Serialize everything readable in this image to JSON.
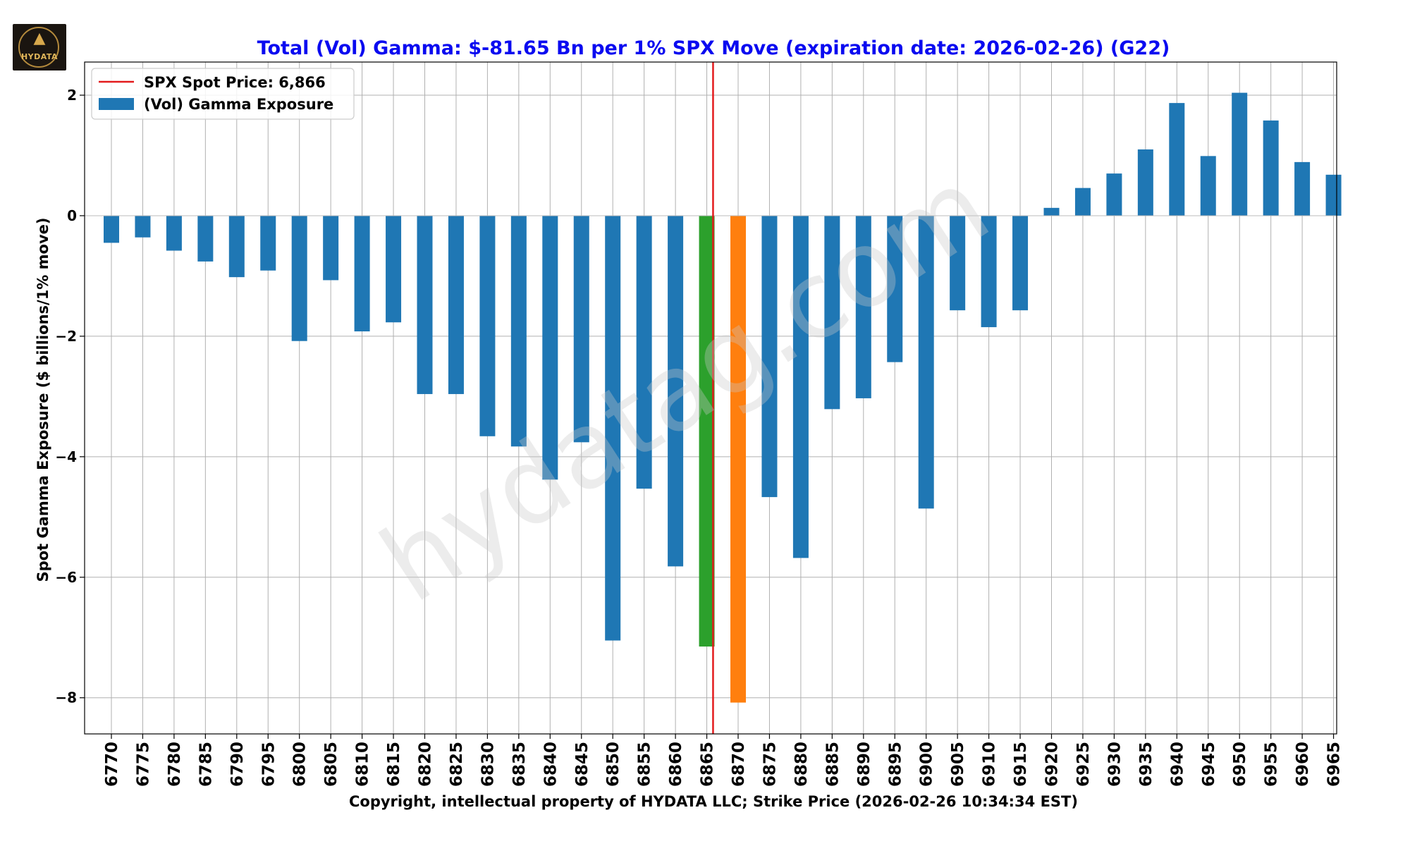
{
  "logo": {
    "text": "HYDATA",
    "icon": "wolf-icon",
    "accent": "#d8a94c",
    "background": "#1a1510"
  },
  "watermark": "hydatag.com",
  "chart_data": {
    "type": "bar",
    "title": "Total (Vol) Gamma: $-81.65 Bn per 1% SPX Move (expiration date: 2026-02-26) (G22)",
    "xlabel": "Copyright, intellectual property of HYDATA LLC; Strike Price (2026-02-26 10:34:34 EST)",
    "ylabel": "Spot Gamma Exposure ($ billions/1% move)",
    "ylim": [
      -8.6,
      2.55
    ],
    "yticks": [
      2,
      0,
      -2,
      -4,
      -6,
      -8
    ],
    "ytick_labels": [
      "2",
      "0",
      "−2",
      "−4",
      "−6",
      "−8"
    ],
    "grid": true,
    "legend_position": "top-left",
    "legend": [
      {
        "label": "SPX Spot Price: 6,866",
        "kind": "line",
        "color": "#e31a1c"
      },
      {
        "label": "(Vol) Gamma Exposure",
        "kind": "patch",
        "color": "#1f77b4"
      }
    ],
    "spot_price": 6866,
    "colors": {
      "default": "#1f77b4",
      "highlight_below": "#2ca02c",
      "highlight_above": "#ff7f0e",
      "spot_line": "#e31a1c",
      "title": "#0a0af0"
    },
    "categories": [
      "6770",
      "6775",
      "6780",
      "6785",
      "6790",
      "6795",
      "6800",
      "6805",
      "6810",
      "6815",
      "6820",
      "6825",
      "6830",
      "6835",
      "6840",
      "6845",
      "6850",
      "6855",
      "6860",
      "6865",
      "6870",
      "6875",
      "6880",
      "6885",
      "6890",
      "6895",
      "6900",
      "6905",
      "6910",
      "6915",
      "6920",
      "6925",
      "6930",
      "6935",
      "6940",
      "6945",
      "6950",
      "6955",
      "6960",
      "6965"
    ],
    "values": [
      -0.45,
      -0.36,
      -0.58,
      -0.76,
      -1.02,
      -0.91,
      -2.08,
      -1.07,
      -1.92,
      -1.77,
      -2.96,
      -2.96,
      -3.66,
      -3.83,
      -4.38,
      -3.76,
      -7.05,
      -4.53,
      -5.82,
      -7.15,
      -8.08,
      -4.67,
      -5.68,
      -3.21,
      -3.03,
      -2.43,
      -4.86,
      -1.57,
      -1.85,
      -1.57,
      0.13,
      0.46,
      0.7,
      1.1,
      1.87,
      0.99,
      2.04,
      1.58,
      0.89,
      0.68
    ],
    "bar_colors": [
      "#1f77b4",
      "#1f77b4",
      "#1f77b4",
      "#1f77b4",
      "#1f77b4",
      "#1f77b4",
      "#1f77b4",
      "#1f77b4",
      "#1f77b4",
      "#1f77b4",
      "#1f77b4",
      "#1f77b4",
      "#1f77b4",
      "#1f77b4",
      "#1f77b4",
      "#1f77b4",
      "#1f77b4",
      "#1f77b4",
      "#1f77b4",
      "#2ca02c",
      "#ff7f0e",
      "#1f77b4",
      "#1f77b4",
      "#1f77b4",
      "#1f77b4",
      "#1f77b4",
      "#1f77b4",
      "#1f77b4",
      "#1f77b4",
      "#1f77b4",
      "#1f77b4",
      "#1f77b4",
      "#1f77b4",
      "#1f77b4",
      "#1f77b4",
      "#1f77b4",
      "#1f77b4",
      "#1f77b4",
      "#1f77b4",
      "#1f77b4"
    ]
  }
}
